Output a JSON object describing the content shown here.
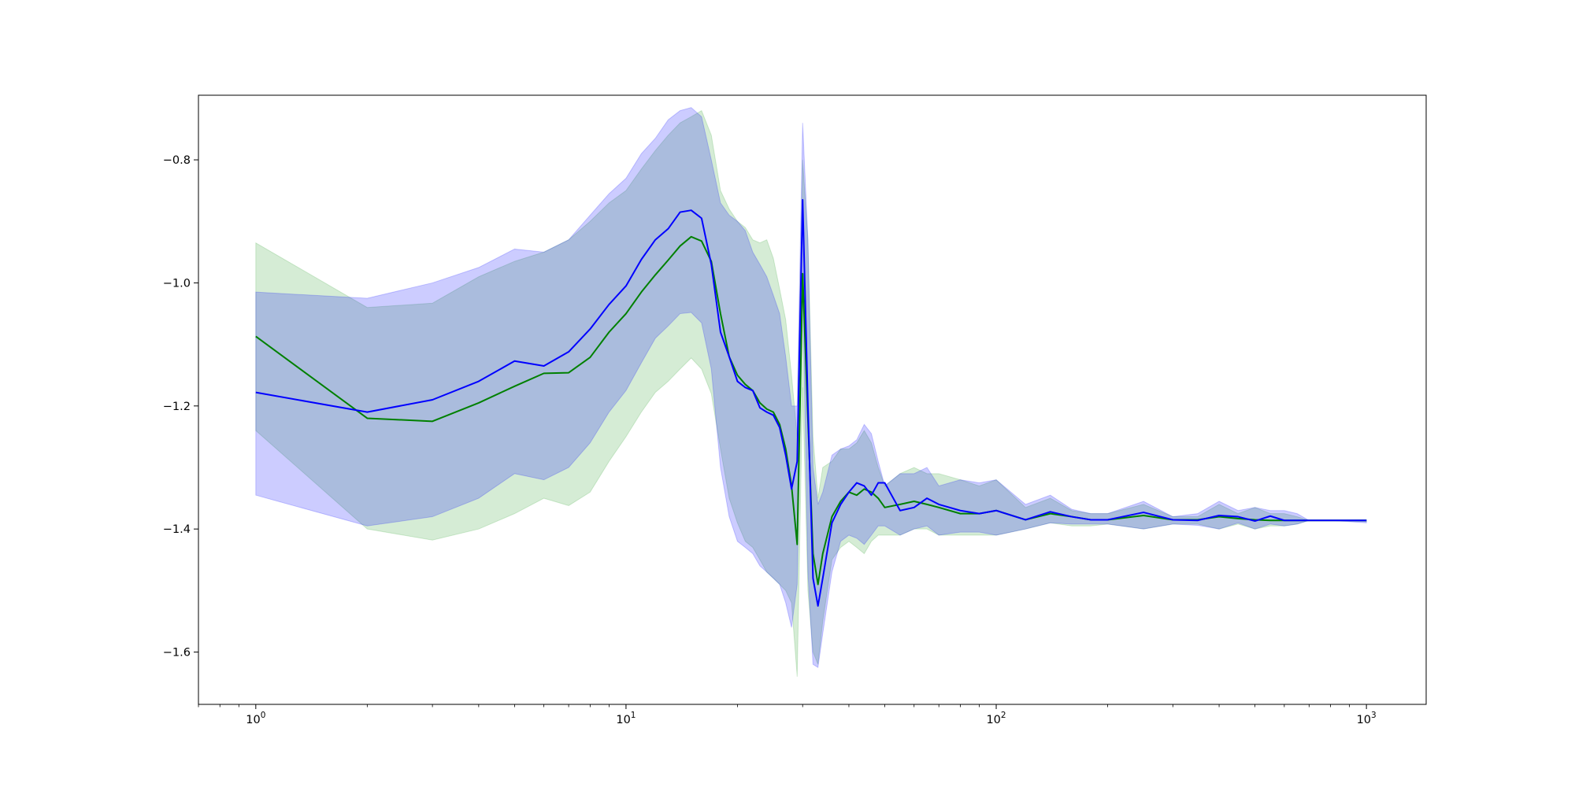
{
  "chart_data": {
    "type": "line",
    "title": "",
    "xlabel": "",
    "ylabel": "",
    "xscale": "log",
    "xlim": [
      0.7,
      1450
    ],
    "ylim": [
      -1.685,
      -0.695
    ],
    "grid": false,
    "legend": "none",
    "x_ticks": [
      {
        "base": "10",
        "exp": "0",
        "value": 1
      },
      {
        "base": "10",
        "exp": "1",
        "value": 10
      },
      {
        "base": "10",
        "exp": "2",
        "value": 100
      },
      {
        "base": "10",
        "exp": "3",
        "value": 1000
      }
    ],
    "y_ticks": [
      {
        "label": "−0.8",
        "value": -0.8
      },
      {
        "label": "−1.0",
        "value": -1.0
      },
      {
        "label": "−1.2",
        "value": -1.2
      },
      {
        "label": "−1.4",
        "value": -1.4
      },
      {
        "label": "−1.6",
        "value": -1.6
      }
    ],
    "series": [
      {
        "color": "#008000",
        "band_color": "#2ca02c",
        "x": [
          1,
          2,
          3,
          4,
          5,
          6,
          7,
          8,
          9,
          10,
          11,
          12,
          13,
          14,
          15,
          16,
          17,
          18,
          19,
          20,
          21,
          22,
          23,
          24,
          25,
          26,
          27,
          28,
          29,
          30,
          31,
          32,
          33,
          34,
          36,
          38,
          40,
          42,
          44,
          46,
          48,
          50,
          55,
          60,
          65,
          70,
          80,
          90,
          100,
          120,
          140,
          160,
          180,
          200,
          250,
          300,
          350,
          400,
          450,
          500,
          550,
          600,
          650,
          700,
          800,
          1000
        ],
        "y": [
          -1.087,
          -1.22,
          -1.225,
          -1.195,
          -1.168,
          -1.147,
          -1.146,
          -1.121,
          -1.08,
          -1.05,
          -1.015,
          -0.987,
          -0.963,
          -0.94,
          -0.925,
          -0.932,
          -0.965,
          -1.05,
          -1.12,
          -1.15,
          -1.165,
          -1.175,
          -1.195,
          -1.205,
          -1.21,
          -1.23,
          -1.27,
          -1.33,
          -1.425,
          -0.985,
          -1.22,
          -1.44,
          -1.49,
          -1.44,
          -1.38,
          -1.355,
          -1.34,
          -1.345,
          -1.335,
          -1.34,
          -1.35,
          -1.365,
          -1.36,
          -1.355,
          -1.36,
          -1.365,
          -1.375,
          -1.375,
          -1.37,
          -1.385,
          -1.375,
          -1.38,
          -1.385,
          -1.385,
          -1.378,
          -1.385,
          -1.385,
          -1.38,
          -1.383,
          -1.385,
          -1.386,
          -1.386,
          -1.386,
          -1.386,
          -1.386,
          -1.386
        ],
        "upper": [
          -0.935,
          -1.04,
          -1.033,
          -0.99,
          -0.965,
          -0.95,
          -0.93,
          -0.9,
          -0.87,
          -0.85,
          -0.815,
          -0.785,
          -0.76,
          -0.74,
          -0.73,
          -0.72,
          -0.76,
          -0.85,
          -0.88,
          -0.9,
          -0.91,
          -0.93,
          -0.935,
          -0.93,
          -0.96,
          -1.01,
          -1.06,
          -1.15,
          -1.25,
          -0.8,
          -0.93,
          -1.25,
          -1.35,
          -1.3,
          -1.29,
          -1.27,
          -1.27,
          -1.26,
          -1.24,
          -1.26,
          -1.3,
          -1.33,
          -1.31,
          -1.3,
          -1.31,
          -1.31,
          -1.32,
          -1.33,
          -1.32,
          -1.365,
          -1.35,
          -1.37,
          -1.375,
          -1.375,
          -1.36,
          -1.38,
          -1.38,
          -1.36,
          -1.375,
          -1.365,
          -1.375,
          -1.375,
          -1.38,
          -1.386,
          -1.386,
          -1.385
        ],
        "lower": [
          -1.24,
          -1.4,
          -1.418,
          -1.4,
          -1.375,
          -1.35,
          -1.362,
          -1.34,
          -1.29,
          -1.25,
          -1.21,
          -1.178,
          -1.16,
          -1.14,
          -1.122,
          -1.14,
          -1.18,
          -1.27,
          -1.35,
          -1.39,
          -1.42,
          -1.43,
          -1.45,
          -1.47,
          -1.48,
          -1.49,
          -1.5,
          -1.52,
          -1.64,
          -1.17,
          -1.5,
          -1.6,
          -1.62,
          -1.55,
          -1.45,
          -1.43,
          -1.42,
          -1.43,
          -1.44,
          -1.42,
          -1.41,
          -1.41,
          -1.41,
          -1.4,
          -1.4,
          -1.41,
          -1.41,
          -1.41,
          -1.41,
          -1.4,
          -1.39,
          -1.395,
          -1.395,
          -1.392,
          -1.4,
          -1.392,
          -1.392,
          -1.4,
          -1.392,
          -1.4,
          -1.395,
          -1.395,
          -1.392,
          -1.386,
          -1.386,
          -1.388
        ]
      },
      {
        "color": "#0000ff",
        "band_color": "#0000ff",
        "x": [
          1,
          2,
          3,
          4,
          5,
          6,
          7,
          8,
          9,
          10,
          11,
          12,
          13,
          14,
          15,
          16,
          17,
          18,
          19,
          20,
          21,
          22,
          23,
          24,
          25,
          26,
          27,
          28,
          29,
          30,
          31,
          32,
          33,
          34,
          36,
          38,
          40,
          42,
          44,
          46,
          48,
          50,
          55,
          60,
          65,
          70,
          80,
          90,
          100,
          120,
          140,
          160,
          180,
          200,
          250,
          300,
          350,
          400,
          450,
          500,
          550,
          600,
          650,
          700,
          800,
          1000
        ],
        "y": [
          -1.178,
          -1.21,
          -1.19,
          -1.16,
          -1.127,
          -1.135,
          -1.112,
          -1.075,
          -1.035,
          -1.005,
          -0.962,
          -0.93,
          -0.912,
          -0.885,
          -0.882,
          -0.895,
          -0.97,
          -1.08,
          -1.12,
          -1.16,
          -1.17,
          -1.175,
          -1.203,
          -1.21,
          -1.215,
          -1.235,
          -1.28,
          -1.335,
          -1.29,
          -0.865,
          -1.2,
          -1.48,
          -1.525,
          -1.48,
          -1.39,
          -1.36,
          -1.34,
          -1.325,
          -1.33,
          -1.345,
          -1.325,
          -1.325,
          -1.37,
          -1.365,
          -1.35,
          -1.36,
          -1.37,
          -1.375,
          -1.37,
          -1.385,
          -1.372,
          -1.38,
          -1.385,
          -1.385,
          -1.373,
          -1.385,
          -1.386,
          -1.378,
          -1.38,
          -1.387,
          -1.379,
          -1.386,
          -1.386,
          -1.386,
          -1.386,
          -1.386
        ],
        "upper": [
          -1.015,
          -1.025,
          -1.0,
          -0.975,
          -0.945,
          -0.95,
          -0.93,
          -0.89,
          -0.855,
          -0.83,
          -0.79,
          -0.765,
          -0.735,
          -0.72,
          -0.715,
          -0.73,
          -0.8,
          -0.87,
          -0.89,
          -0.9,
          -0.915,
          -0.95,
          -0.97,
          -0.99,
          -1.02,
          -1.05,
          -1.12,
          -1.2,
          -1.2,
          -0.74,
          -0.93,
          -1.3,
          -1.36,
          -1.34,
          -1.28,
          -1.27,
          -1.265,
          -1.255,
          -1.23,
          -1.245,
          -1.29,
          -1.33,
          -1.31,
          -1.31,
          -1.3,
          -1.33,
          -1.32,
          -1.325,
          -1.32,
          -1.36,
          -1.345,
          -1.368,
          -1.375,
          -1.375,
          -1.355,
          -1.38,
          -1.375,
          -1.355,
          -1.37,
          -1.365,
          -1.37,
          -1.37,
          -1.375,
          -1.386,
          -1.386,
          -1.385
        ],
        "lower": [
          -1.345,
          -1.395,
          -1.38,
          -1.35,
          -1.31,
          -1.32,
          -1.3,
          -1.26,
          -1.21,
          -1.175,
          -1.13,
          -1.09,
          -1.07,
          -1.05,
          -1.048,
          -1.065,
          -1.14,
          -1.3,
          -1.38,
          -1.42,
          -1.43,
          -1.44,
          -1.46,
          -1.47,
          -1.48,
          -1.49,
          -1.52,
          -1.56,
          -1.49,
          -1.0,
          -1.47,
          -1.62,
          -1.625,
          -1.57,
          -1.47,
          -1.42,
          -1.41,
          -1.415,
          -1.425,
          -1.41,
          -1.395,
          -1.395,
          -1.41,
          -1.4,
          -1.395,
          -1.41,
          -1.405,
          -1.405,
          -1.41,
          -1.4,
          -1.39,
          -1.392,
          -1.392,
          -1.392,
          -1.4,
          -1.392,
          -1.394,
          -1.4,
          -1.39,
          -1.4,
          -1.392,
          -1.395,
          -1.392,
          -1.386,
          -1.386,
          -1.39
        ]
      }
    ]
  }
}
